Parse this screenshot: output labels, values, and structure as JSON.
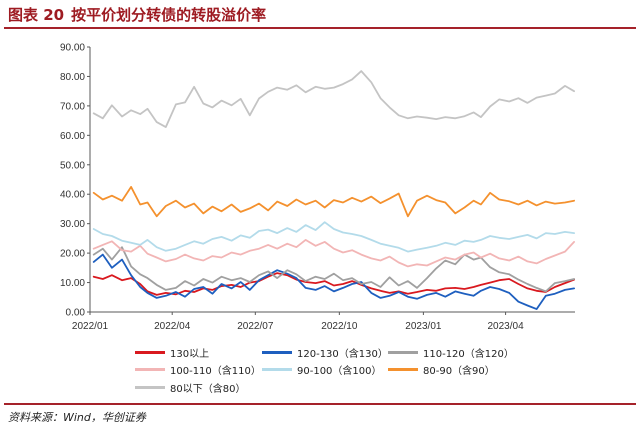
{
  "header": {
    "figure_label": "图表 20"
  },
  "chart_data": {
    "type": "line",
    "title": "按平价划分转债的转股溢价率",
    "xlabel": "",
    "ylabel": "",
    "ylim": [
      0,
      90
    ],
    "xlim": [
      "2022-01-01",
      "2023-06-16"
    ],
    "grid": false,
    "legend": "bottom",
    "y_ticks": [
      "0.00",
      "10.00",
      "20.00",
      "30.00",
      "40.00",
      "50.00",
      "60.00",
      "70.00",
      "80.00",
      "90.00"
    ],
    "x_ticks": [
      "2022/01",
      "2022/04",
      "2022/07",
      "2022/10",
      "2023/01",
      "2023/04"
    ],
    "x": [
      "2022-01-05",
      "2022-01-15",
      "2022-01-25",
      "2022-02-05",
      "2022-02-15",
      "2022-02-25",
      "2022-03-05",
      "2022-03-15",
      "2022-03-25",
      "2022-04-05",
      "2022-04-15",
      "2022-04-25",
      "2022-05-05",
      "2022-05-15",
      "2022-05-25",
      "2022-06-05",
      "2022-06-15",
      "2022-06-25",
      "2022-07-05",
      "2022-07-15",
      "2022-07-25",
      "2022-08-05",
      "2022-08-15",
      "2022-08-25",
      "2022-09-05",
      "2022-09-15",
      "2022-09-25",
      "2022-10-05",
      "2022-10-15",
      "2022-10-25",
      "2022-11-05",
      "2022-11-15",
      "2022-11-25",
      "2022-12-05",
      "2022-12-15",
      "2022-12-25",
      "2023-01-05",
      "2023-01-15",
      "2023-01-25",
      "2023-02-05",
      "2023-02-15",
      "2023-02-25",
      "2023-03-05",
      "2023-03-15",
      "2023-03-25",
      "2023-04-05",
      "2023-04-15",
      "2023-04-25",
      "2023-05-05",
      "2023-05-15",
      "2023-05-25",
      "2023-06-05",
      "2023-06-15"
    ],
    "series": [
      {
        "name": "130以上",
        "color": "#d9191f",
        "values": [
          12.0,
          11.2,
          12.5,
          10.8,
          11.5,
          9.5,
          7.0,
          5.8,
          6.5,
          6.0,
          7.2,
          6.8,
          8.0,
          7.5,
          8.8,
          9.2,
          8.5,
          10.0,
          10.5,
          12.0,
          13.2,
          12.5,
          11.0,
          10.2,
          9.8,
          10.5,
          9.0,
          9.5,
          10.5,
          9.2,
          8.0,
          7.2,
          6.5,
          7.0,
          6.2,
          6.8,
          7.5,
          7.2,
          8.0,
          8.2,
          7.8,
          8.5,
          9.2,
          10.0,
          10.8,
          11.2,
          9.5,
          8.0,
          7.2,
          6.8,
          8.5,
          9.8,
          11.0
        ]
      },
      {
        "name": "120-130（含130）",
        "color": "#1e5fbf",
        "values": [
          17.0,
          19.5,
          15.0,
          17.8,
          12.5,
          8.5,
          6.5,
          4.8,
          5.5,
          6.8,
          5.2,
          7.8,
          8.5,
          6.2,
          9.5,
          8.0,
          10.2,
          7.5,
          10.8,
          12.5,
          14.2,
          13.0,
          11.5,
          8.2,
          7.5,
          8.8,
          7.0,
          8.2,
          9.5,
          10.2,
          6.5,
          4.8,
          5.5,
          6.8,
          5.2,
          4.5,
          5.8,
          6.5,
          5.2,
          7.0,
          6.2,
          5.5,
          7.2,
          8.5,
          7.8,
          6.5,
          3.5,
          2.2,
          1.0,
          5.5,
          6.2,
          7.5,
          8.0
        ]
      },
      {
        "name": "110-120（含120）",
        "color": "#a0a0a0",
        "values": [
          19.5,
          21.5,
          17.8,
          22.0,
          15.5,
          12.8,
          11.5,
          9.2,
          7.5,
          8.2,
          10.5,
          9.0,
          11.2,
          10.0,
          12.0,
          10.8,
          11.5,
          10.2,
          12.5,
          13.8,
          11.5,
          14.2,
          12.8,
          10.5,
          12.0,
          11.2,
          13.0,
          10.8,
          11.5,
          9.5,
          10.2,
          8.5,
          11.8,
          9.0,
          10.5,
          8.2,
          11.5,
          14.8,
          17.5,
          16.2,
          19.5,
          17.8,
          18.5,
          15.2,
          13.5,
          12.8,
          11.0,
          9.5,
          8.2,
          7.0,
          9.8,
          10.5,
          11.2
        ]
      },
      {
        "name": "100-110（含110）",
        "color": "#f2b5b5",
        "values": [
          21.5,
          22.8,
          24.0,
          21.0,
          20.5,
          22.5,
          19.8,
          18.5,
          17.2,
          18.0,
          19.5,
          18.2,
          17.5,
          19.0,
          18.5,
          20.2,
          19.5,
          20.8,
          21.5,
          22.8,
          21.5,
          23.2,
          22.0,
          24.5,
          22.5,
          23.8,
          21.5,
          20.2,
          21.0,
          19.5,
          18.2,
          17.5,
          18.8,
          16.8,
          15.5,
          16.2,
          15.8,
          17.2,
          18.5,
          17.8,
          19.5,
          20.2,
          18.5,
          19.8,
          18.2,
          17.5,
          18.8,
          17.2,
          16.5,
          18.0,
          19.2,
          20.5,
          23.8
        ]
      },
      {
        "name": "90-100（含100）",
        "color": "#b3dbea",
        "values": [
          28.2,
          26.5,
          25.8,
          24.2,
          23.5,
          22.8,
          24.5,
          22.0,
          20.8,
          21.5,
          22.8,
          24.0,
          23.2,
          24.8,
          25.5,
          24.2,
          26.0,
          25.2,
          27.5,
          28.0,
          26.8,
          28.5,
          27.2,
          29.5,
          27.8,
          30.5,
          28.2,
          27.0,
          26.5,
          25.8,
          24.5,
          23.2,
          22.5,
          21.8,
          20.5,
          21.2,
          21.8,
          22.5,
          23.5,
          22.8,
          24.2,
          23.8,
          24.5,
          25.8,
          25.2,
          24.8,
          25.5,
          26.2,
          25.0,
          26.8,
          26.5,
          27.2,
          26.8
        ]
      },
      {
        "name": "80-90（含90）",
        "color": "#f4912e",
        "values": [
          40.5,
          38.2,
          39.5,
          37.8,
          42.5,
          36.5,
          37.2,
          32.5,
          36.0,
          37.8,
          35.5,
          36.8,
          33.5,
          35.8,
          34.2,
          36.5,
          34.0,
          35.2,
          36.8,
          34.5,
          37.5,
          36.0,
          38.2,
          36.5,
          37.8,
          35.5,
          38.0,
          37.2,
          38.8,
          37.5,
          39.2,
          37.0,
          38.5,
          40.2,
          32.5,
          37.8,
          39.5,
          38.0,
          37.2,
          33.5,
          35.5,
          37.8,
          36.5,
          40.5,
          38.2,
          37.6,
          36.5,
          37.8,
          36.2,
          37.5,
          36.8,
          37.2,
          37.8
        ]
      },
      {
        "name": "80以下（含80）",
        "color": "#c4c4c4",
        "values": [
          67.5,
          65.8,
          70.2,
          66.4,
          68.5,
          67.2,
          69.0,
          64.5,
          62.8,
          70.5,
          71.2,
          76.5,
          70.8,
          69.5,
          71.8,
          70.2,
          72.4,
          66.8,
          72.5,
          74.8,
          76.2,
          75.5,
          77.0,
          74.6,
          76.5,
          75.8,
          76.2,
          77.4,
          79.0,
          81.8,
          78.0,
          72.6,
          69.5,
          66.8,
          65.8,
          66.4,
          66.0,
          65.5,
          66.2,
          65.8,
          66.5,
          67.8,
          66.2,
          69.8,
          72.2,
          71.5,
          72.6,
          71.0,
          72.8,
          73.5,
          74.2,
          76.8,
          75.0
        ]
      }
    ]
  },
  "footer": {
    "source": "资料来源：Wind，华创证券"
  }
}
